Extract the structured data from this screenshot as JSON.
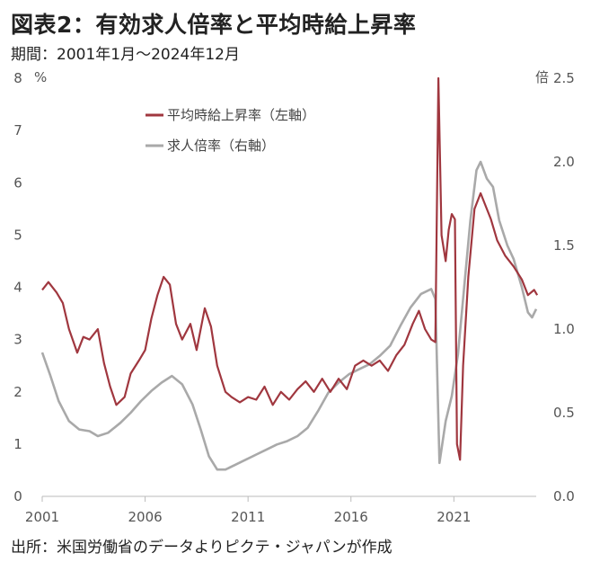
{
  "title": "図表2：有効求人倍率と平均時給上昇率",
  "subtitle": "期間：2001年1月～2024年12月",
  "source": "出所：米国労働省のデータよりピクテ・ジャパンが作成",
  "colors": {
    "wage": "#a0373f",
    "openings": "#a9a9a9",
    "text": "#555555"
  },
  "chart_data": {
    "type": "line",
    "x_ticks": [
      "2001",
      "2006",
      "2011",
      "2016",
      "2021"
    ],
    "left_axis": {
      "unit": "%",
      "ylim": [
        0,
        8
      ],
      "ticks": [
        "0",
        "1",
        "2",
        "3",
        "4",
        "5",
        "6",
        "7",
        "8"
      ]
    },
    "right_axis": {
      "unit": "倍",
      "ylim": [
        0,
        2.5
      ],
      "ticks": [
        "0.0",
        "0.5",
        "1.0",
        "1.5",
        "2.0",
        "2.5"
      ]
    },
    "legend": [
      "平均時給上昇率（左軸）",
      "求人倍率（右軸）"
    ],
    "series": [
      {
        "name": "平均時給上昇率（左軸）",
        "axis": "left",
        "points": [
          [
            2001.0,
            3.95
          ],
          [
            2001.3,
            4.1
          ],
          [
            2001.7,
            3.9
          ],
          [
            2002.0,
            3.7
          ],
          [
            2002.3,
            3.2
          ],
          [
            2002.7,
            2.75
          ],
          [
            2003.0,
            3.05
          ],
          [
            2003.3,
            3.0
          ],
          [
            2003.7,
            3.2
          ],
          [
            2004.0,
            2.55
          ],
          [
            2004.3,
            2.1
          ],
          [
            2004.6,
            1.75
          ],
          [
            2005.0,
            1.9
          ],
          [
            2005.3,
            2.35
          ],
          [
            2005.7,
            2.6
          ],
          [
            2006.0,
            2.8
          ],
          [
            2006.3,
            3.4
          ],
          [
            2006.6,
            3.85
          ],
          [
            2006.9,
            4.2
          ],
          [
            2007.2,
            4.05
          ],
          [
            2007.5,
            3.3
          ],
          [
            2007.8,
            3.0
          ],
          [
            2008.2,
            3.3
          ],
          [
            2008.5,
            2.8
          ],
          [
            2008.9,
            3.6
          ],
          [
            2009.2,
            3.25
          ],
          [
            2009.5,
            2.5
          ],
          [
            2009.9,
            2.0
          ],
          [
            2010.2,
            1.9
          ],
          [
            2010.6,
            1.8
          ],
          [
            2011.0,
            1.9
          ],
          [
            2011.4,
            1.85
          ],
          [
            2011.8,
            2.1
          ],
          [
            2012.2,
            1.75
          ],
          [
            2012.6,
            2.0
          ],
          [
            2013.0,
            1.85
          ],
          [
            2013.4,
            2.05
          ],
          [
            2013.8,
            2.2
          ],
          [
            2014.2,
            2.0
          ],
          [
            2014.6,
            2.25
          ],
          [
            2015.0,
            2.0
          ],
          [
            2015.4,
            2.25
          ],
          [
            2015.8,
            2.05
          ],
          [
            2016.2,
            2.5
          ],
          [
            2016.6,
            2.6
          ],
          [
            2017.0,
            2.5
          ],
          [
            2017.4,
            2.6
          ],
          [
            2017.8,
            2.4
          ],
          [
            2018.2,
            2.7
          ],
          [
            2018.6,
            2.9
          ],
          [
            2019.0,
            3.3
          ],
          [
            2019.3,
            3.55
          ],
          [
            2019.6,
            3.2
          ],
          [
            2019.9,
            3.0
          ],
          [
            2020.1,
            2.95
          ],
          [
            2020.25,
            8.0
          ],
          [
            2020.4,
            5.0
          ],
          [
            2020.6,
            4.5
          ],
          [
            2020.75,
            5.1
          ],
          [
            2020.9,
            5.4
          ],
          [
            2021.05,
            5.3
          ],
          [
            2021.15,
            1.0
          ],
          [
            2021.3,
            0.7
          ],
          [
            2021.45,
            2.5
          ],
          [
            2021.7,
            4.2
          ],
          [
            2022.0,
            5.5
          ],
          [
            2022.3,
            5.8
          ],
          [
            2022.5,
            5.6
          ],
          [
            2022.8,
            5.3
          ],
          [
            2023.1,
            4.9
          ],
          [
            2023.5,
            4.6
          ],
          [
            2023.9,
            4.4
          ],
          [
            2024.3,
            4.15
          ],
          [
            2024.6,
            3.85
          ],
          [
            2024.9,
            3.95
          ],
          [
            2025.05,
            3.85
          ]
        ]
      },
      {
        "name": "求人倍率（右軸）",
        "axis": "right",
        "points": [
          [
            2001.0,
            0.86
          ],
          [
            2001.4,
            0.72
          ],
          [
            2001.8,
            0.57
          ],
          [
            2002.3,
            0.45
          ],
          [
            2002.8,
            0.4
          ],
          [
            2003.3,
            0.39
          ],
          [
            2003.7,
            0.36
          ],
          [
            2004.2,
            0.38
          ],
          [
            2004.8,
            0.44
          ],
          [
            2005.3,
            0.5
          ],
          [
            2005.8,
            0.57
          ],
          [
            2006.3,
            0.63
          ],
          [
            2006.8,
            0.68
          ],
          [
            2007.3,
            0.72
          ],
          [
            2007.8,
            0.67
          ],
          [
            2008.3,
            0.55
          ],
          [
            2008.7,
            0.4
          ],
          [
            2009.1,
            0.24
          ],
          [
            2009.5,
            0.16
          ],
          [
            2009.9,
            0.16
          ],
          [
            2010.4,
            0.19
          ],
          [
            2010.9,
            0.22
          ],
          [
            2011.4,
            0.25
          ],
          [
            2011.9,
            0.28
          ],
          [
            2012.4,
            0.31
          ],
          [
            2012.9,
            0.33
          ],
          [
            2013.4,
            0.36
          ],
          [
            2013.9,
            0.41
          ],
          [
            2014.4,
            0.51
          ],
          [
            2014.9,
            0.62
          ],
          [
            2015.4,
            0.68
          ],
          [
            2015.9,
            0.73
          ],
          [
            2016.4,
            0.76
          ],
          [
            2016.9,
            0.79
          ],
          [
            2017.4,
            0.84
          ],
          [
            2017.9,
            0.9
          ],
          [
            2018.4,
            1.02
          ],
          [
            2018.9,
            1.13
          ],
          [
            2019.4,
            1.21
          ],
          [
            2019.9,
            1.24
          ],
          [
            2020.1,
            1.18
          ],
          [
            2020.3,
            0.2
          ],
          [
            2020.6,
            0.45
          ],
          [
            2020.9,
            0.6
          ],
          [
            2021.2,
            0.85
          ],
          [
            2021.5,
            1.25
          ],
          [
            2021.8,
            1.65
          ],
          [
            2022.1,
            1.95
          ],
          [
            2022.3,
            2.0
          ],
          [
            2022.6,
            1.9
          ],
          [
            2022.9,
            1.85
          ],
          [
            2023.2,
            1.65
          ],
          [
            2023.6,
            1.5
          ],
          [
            2023.9,
            1.42
          ],
          [
            2024.3,
            1.25
          ],
          [
            2024.6,
            1.1
          ],
          [
            2024.8,
            1.07
          ],
          [
            2025.0,
            1.12
          ]
        ]
      }
    ]
  }
}
